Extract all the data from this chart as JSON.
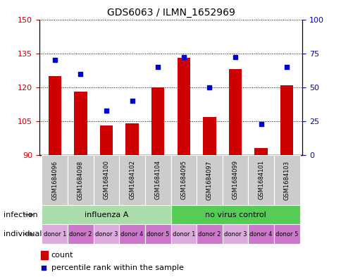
{
  "title": "GDS6063 / ILMN_1652969",
  "samples": [
    "GSM1684096",
    "GSM1684098",
    "GSM1684100",
    "GSM1684102",
    "GSM1684104",
    "GSM1684095",
    "GSM1684097",
    "GSM1684099",
    "GSM1684101",
    "GSM1684103"
  ],
  "counts": [
    125,
    118,
    103,
    104,
    120,
    133,
    107,
    128,
    93,
    121
  ],
  "percentiles": [
    70,
    60,
    33,
    40,
    65,
    72,
    50,
    72,
    23,
    65
  ],
  "ylim_left": [
    90,
    150
  ],
  "ylim_right": [
    0,
    100
  ],
  "yticks_left": [
    90,
    105,
    120,
    135,
    150
  ],
  "yticks_right": [
    0,
    25,
    50,
    75,
    100
  ],
  "bar_color": "#cc0000",
  "dot_color": "#0000cc",
  "bar_bottom": 90,
  "infection_color_influenza": "#aaddaa",
  "infection_color_novirus": "#55cc55",
  "individual_colors": [
    "#ddaadd",
    "#cc77cc",
    "#ddaadd",
    "#cc77cc",
    "#cc77cc",
    "#ddaadd",
    "#cc77cc",
    "#ddaadd",
    "#cc77cc",
    "#cc77cc"
  ],
  "infection_label": "infection",
  "individual_label": "individual",
  "individual_labels": [
    "donor 1",
    "donor 2",
    "donor 3",
    "donor 4",
    "donor 5",
    "donor 1",
    "donor 2",
    "donor 3",
    "donor 4",
    "donor 5"
  ],
  "legend_count_label": "count",
  "legend_percentile_label": "percentile rank within the sample",
  "tick_label_color_left": "#cc0000",
  "tick_label_color_right": "#0000cc",
  "background_color": "#ffffff",
  "sample_box_color": "#cccccc",
  "grid_color": "black",
  "title_fontsize": 10,
  "axis_fontsize": 8,
  "sample_fontsize": 6,
  "donor_fontsize": 6,
  "inf_fontsize": 8,
  "legend_fontsize": 8,
  "label_fontsize": 8
}
